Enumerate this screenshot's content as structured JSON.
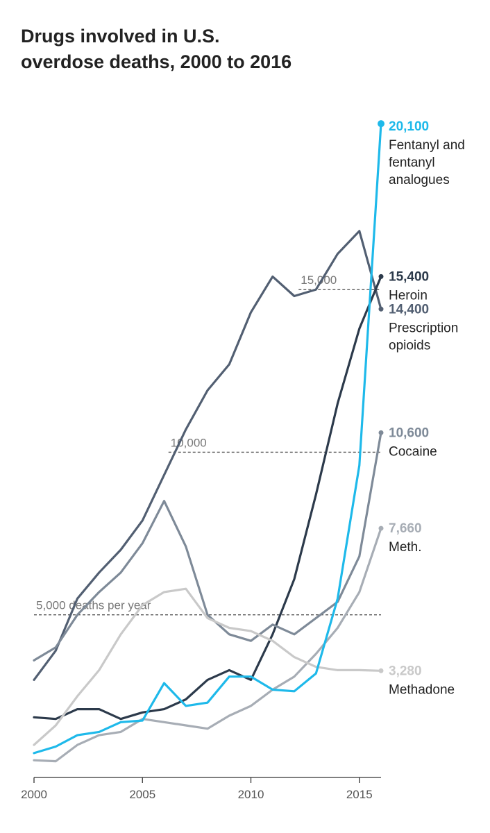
{
  "chart_data": {
    "type": "line",
    "title_lines": [
      "Drugs involved in U.S.",
      "overdose deaths, 2000 to 2016"
    ],
    "xlabel": "",
    "ylabel": "",
    "x": [
      2000,
      2001,
      2002,
      2003,
      2004,
      2005,
      2006,
      2007,
      2008,
      2009,
      2010,
      2011,
      2012,
      2013,
      2014,
      2015,
      2016
    ],
    "xlim": [
      2000,
      2016
    ],
    "ylim": [
      0,
      21000
    ],
    "x_ticks": [
      {
        "value": 2000,
        "label": "2000"
      },
      {
        "value": 2005,
        "label": "2005"
      },
      {
        "value": 2010,
        "label": "2010"
      },
      {
        "value": 2015,
        "label": "2015"
      }
    ],
    "reference_lines": [
      {
        "value": 5000,
        "label": "5,000 deaths per year",
        "from_x": 2000
      },
      {
        "value": 10000,
        "label": "10,000",
        "from_x": 2006.2
      },
      {
        "value": 15000,
        "label": "15,000",
        "from_x": 2012.2
      }
    ],
    "grid": false,
    "legend": "direct labels at line ends",
    "series": [
      {
        "name": "Prescription opioids",
        "end_value": "14,400",
        "end_label": [
          "Prescription",
          "opioids"
        ],
        "color": "#525f72",
        "values": [
          3000,
          3900,
          5500,
          6300,
          7000,
          7900,
          9300,
          10700,
          11900,
          12700,
          14300,
          15400,
          14800,
          15000,
          16100,
          16800,
          14400
        ]
      },
      {
        "name": "Heroin",
        "end_value": "15,400",
        "end_label": [
          "Heroin"
        ],
        "color": "#2c3a4b",
        "values": [
          1850,
          1800,
          2100,
          2100,
          1800,
          2000,
          2100,
          2400,
          3000,
          3300,
          3000,
          4400,
          6100,
          8700,
          11500,
          13800,
          15400
        ]
      },
      {
        "name": "Cocaine",
        "end_value": "10,600",
        "end_label": [
          "Cocaine"
        ],
        "color": "#7e8a98",
        "values": [
          3600,
          4000,
          5000,
          5700,
          6300,
          7200,
          8500,
          7100,
          5000,
          4400,
          4200,
          4700,
          4400,
          4900,
          5400,
          6800,
          10600
        ]
      },
      {
        "name": "Meth.",
        "end_value": "7,660",
        "end_label": [
          "Meth."
        ],
        "color": "#a7adb5",
        "values": [
          530,
          500,
          1000,
          1300,
          1400,
          1800,
          1700,
          1600,
          1500,
          1900,
          2200,
          2700,
          3100,
          3800,
          4600,
          5700,
          7660
        ]
      },
      {
        "name": "Methadone",
        "end_value": "3,280",
        "end_label": [
          "Methadone"
        ],
        "color": "#c9c9c9",
        "values": [
          1000,
          1600,
          2500,
          3300,
          4400,
          5300,
          5700,
          5800,
          4900,
          4600,
          4500,
          4200,
          3700,
          3400,
          3300,
          3300,
          3280
        ]
      },
      {
        "name": "Fentanyl and fentanyl analogues",
        "end_value": "20,100",
        "end_label": [
          "Fentanyl and",
          "fentanyl",
          "analogues"
        ],
        "color": "#1eb9ea",
        "values": [
          750,
          950,
          1300,
          1400,
          1700,
          1750,
          2900,
          2200,
          2300,
          3100,
          3100,
          2700,
          2650,
          3200,
          5500,
          9600,
          20100
        ]
      }
    ]
  }
}
